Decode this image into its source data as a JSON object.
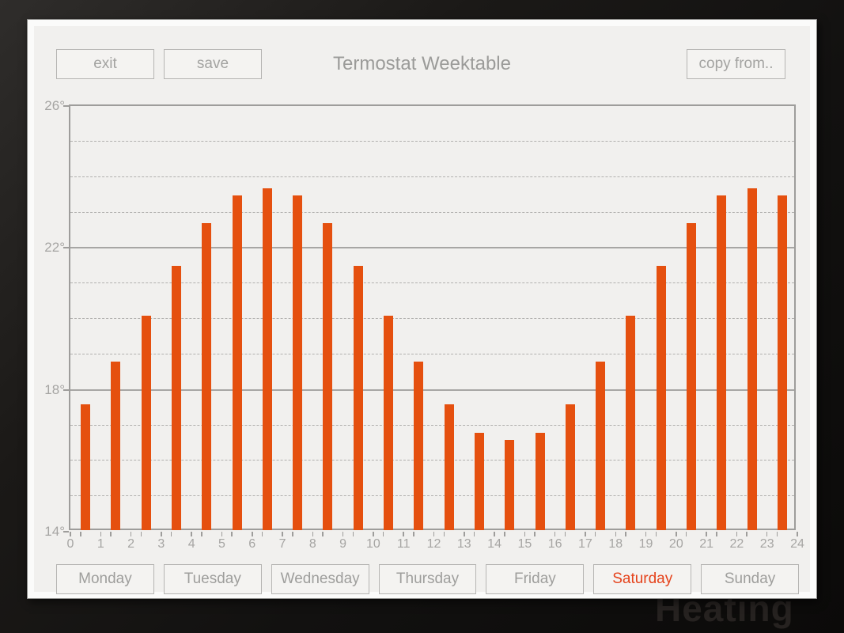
{
  "header": {
    "exit_label": "exit",
    "save_label": "save",
    "title": "Termostat Weektable",
    "copy_from_label": "copy from.."
  },
  "background_text": "Heating",
  "day_tabs": {
    "days": [
      "Monday",
      "Tuesday",
      "Wednesday",
      "Thursday",
      "Friday",
      "Saturday",
      "Sunday"
    ],
    "selected": "Saturday"
  },
  "chart_data": {
    "type": "bar",
    "title": "Termostat Weektable",
    "description": "Hourly thermostat temperature schedule for Saturday, one bar per hour centered between hour marks",
    "hours": [
      0,
      1,
      2,
      3,
      4,
      5,
      6,
      7,
      8,
      9,
      10,
      11,
      12,
      13,
      14,
      15,
      16,
      17,
      18,
      19,
      20,
      21,
      22,
      23
    ],
    "values": [
      17.5,
      18.7,
      20.0,
      21.4,
      22.6,
      23.4,
      23.6,
      23.4,
      22.6,
      21.4,
      20.0,
      18.7,
      17.5,
      16.7,
      16.5,
      16.7,
      17.5,
      18.7,
      20.0,
      21.4,
      22.6,
      23.4,
      23.6,
      23.4
    ],
    "unit": "degrees",
    "xlim": [
      0,
      24
    ],
    "ylim": [
      14,
      26
    ],
    "x_tick_labels": [
      "0",
      "1",
      "2",
      "3",
      "4",
      "5",
      "6",
      "7",
      "8",
      "9",
      "10",
      "11",
      "12",
      "13",
      "14",
      "15",
      "16",
      "17",
      "18",
      "19",
      "20",
      "21",
      "22",
      "23",
      "24"
    ],
    "y_tick_labels": [
      "26°",
      "22°",
      "18°",
      "14°"
    ],
    "y_major_values": [
      26,
      22,
      18,
      14
    ],
    "y_minor_step": 1,
    "grid": "solid lines every 4 degrees, dashed lines every 1 degree",
    "legend": "none",
    "bar_color": "#e5500f"
  },
  "colors": {
    "bar": "#e5500f",
    "selected_day_text": "#e5431c",
    "panel_bg": "#f1f0ee",
    "panel_rim": "#fbfbfa",
    "muted_text": "#a3a3a1",
    "axis": "#9e9d9b"
  }
}
